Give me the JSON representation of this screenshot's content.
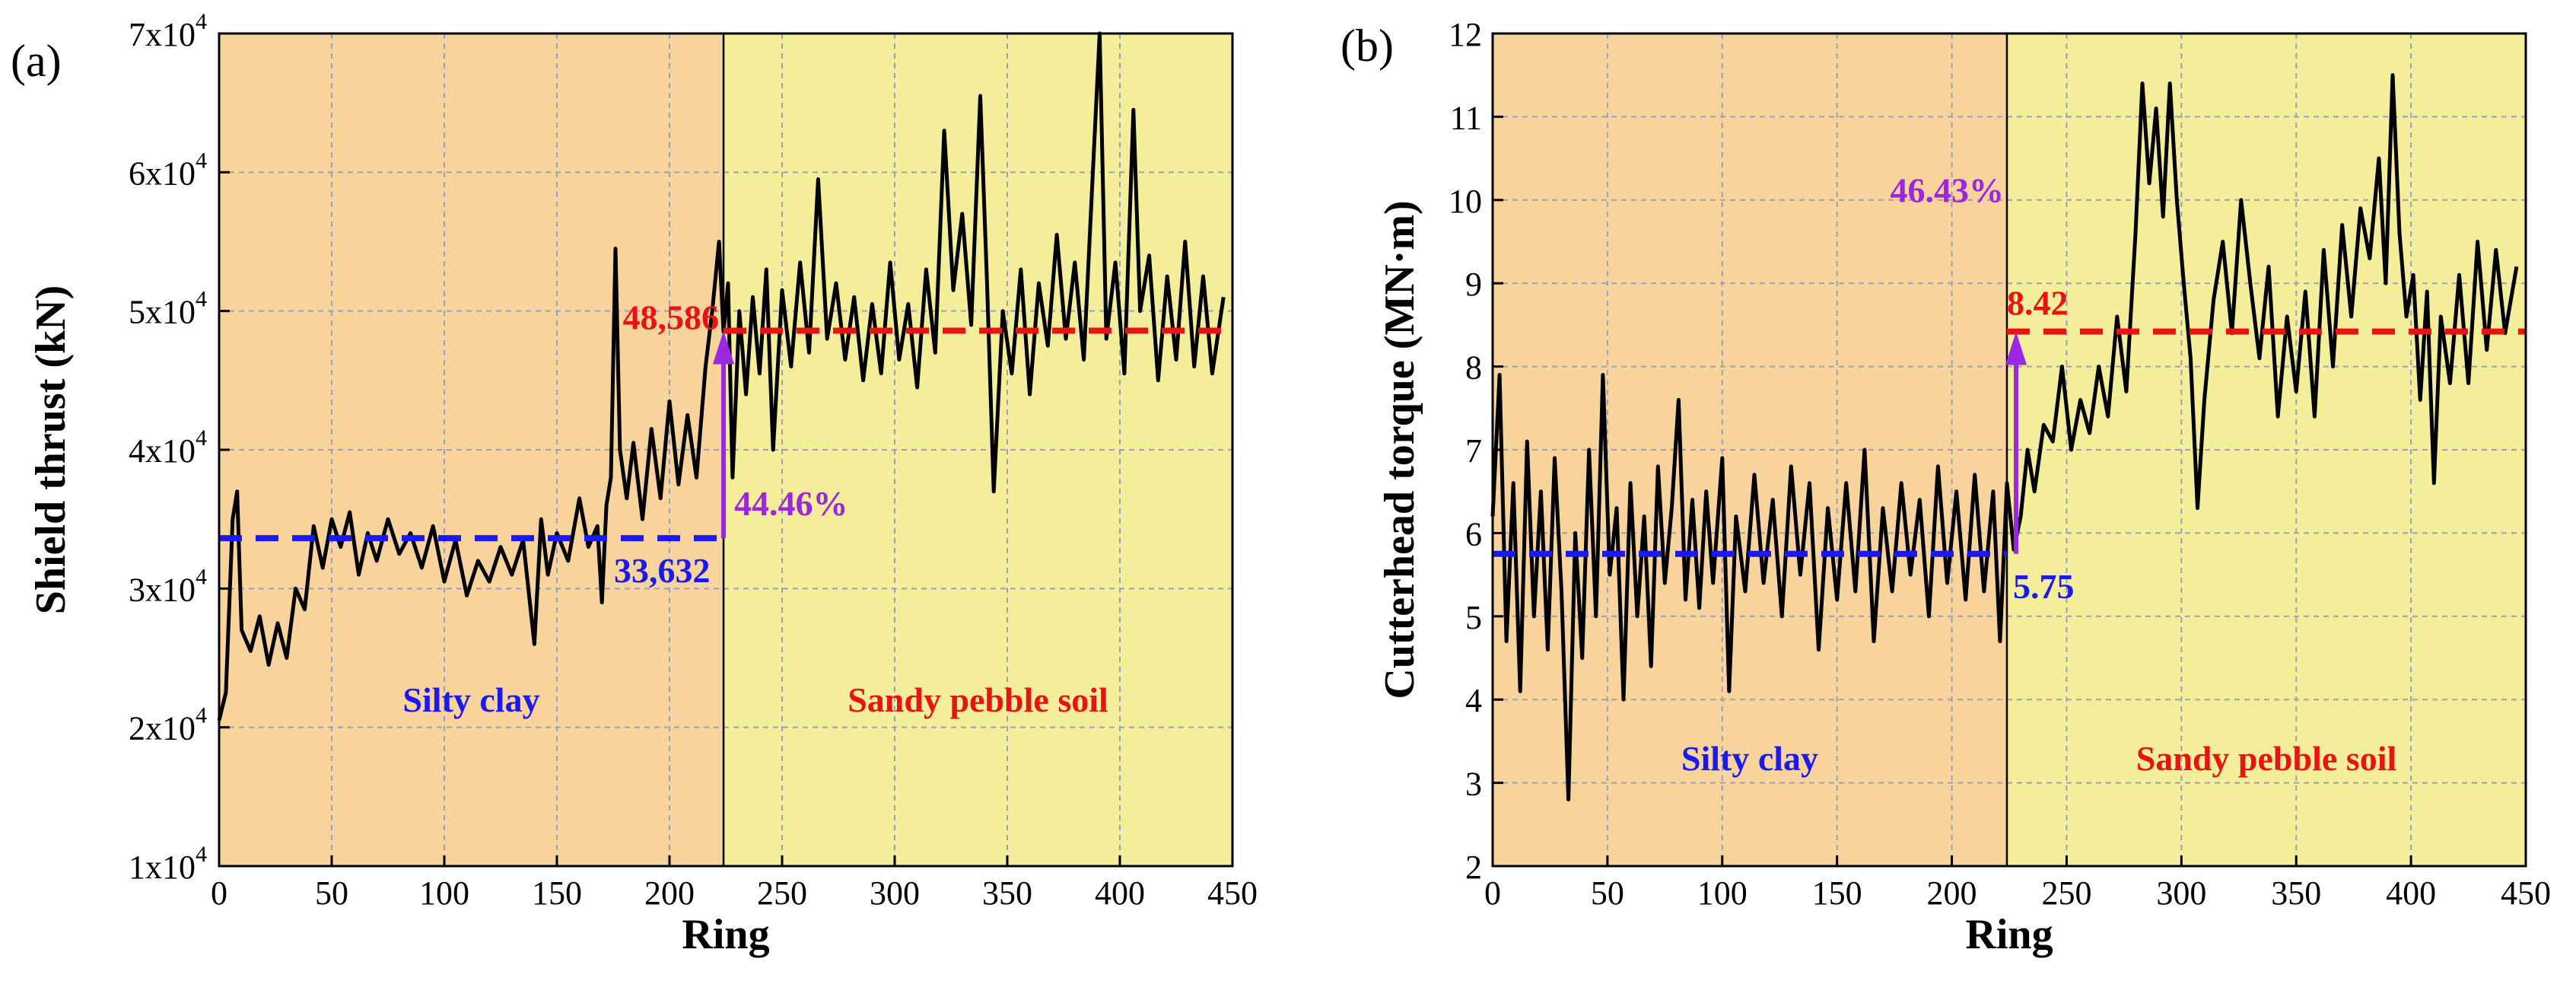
{
  "colors": {
    "silty_bg": "#f8d39b",
    "sandy_bg": "#f4ee9a",
    "series": "#000000",
    "silty_mean": "#1a1af0",
    "sandy_mean": "#e81414",
    "increase": "#9b27e0",
    "grid": "#9aa0b8"
  },
  "chart_data": [
    {
      "type": "line",
      "panel": "(a)",
      "title": "",
      "xlabel": "Ring",
      "ylabel": "Shield thrust (kN)",
      "xlim": [
        0,
        450
      ],
      "ylim": [
        10000,
        70000
      ],
      "x_ticks": [
        0,
        50,
        100,
        150,
        200,
        250,
        300,
        350,
        400,
        450
      ],
      "y_ticks": [
        10000,
        20000,
        30000,
        40000,
        50000,
        60000,
        70000
      ],
      "y_tick_labels": [
        {
          "mant": "1x10",
          "exp": "4"
        },
        {
          "mant": "2x10",
          "exp": "4"
        },
        {
          "mant": "3x10",
          "exp": "4"
        },
        {
          "mant": "4x10",
          "exp": "4"
        },
        {
          "mant": "5x10",
          "exp": "4"
        },
        {
          "mant": "6x10",
          "exp": "4"
        },
        {
          "mant": "7x10",
          "exp": "4"
        }
      ],
      "boundary_ring": 224,
      "regions": [
        {
          "name": "Silty clay",
          "from": 0,
          "to": 224,
          "label_y": 22000
        },
        {
          "name": "Sandy pebble soil",
          "from": 224,
          "to": 450,
          "label_y": 22000
        }
      ],
      "means": {
        "silty": {
          "value": 33632,
          "label": "33,632"
        },
        "sandy": {
          "value": 48586,
          "label": "48,586"
        }
      },
      "increase_label": "44.46%",
      "series": [
        {
          "name": "Shield thrust",
          "points": [
            [
              0,
              20500
            ],
            [
              3,
              22500
            ],
            [
              6,
              35000
            ],
            [
              8,
              37000
            ],
            [
              10,
              27000
            ],
            [
              14,
              25500
            ],
            [
              18,
              28000
            ],
            [
              22,
              24500
            ],
            [
              26,
              27500
            ],
            [
              30,
              25000
            ],
            [
              34,
              30000
            ],
            [
              38,
              28500
            ],
            [
              42,
              34500
            ],
            [
              46,
              31500
            ],
            [
              50,
              35000
            ],
            [
              54,
              33000
            ],
            [
              58,
              35500
            ],
            [
              62,
              31000
            ],
            [
              66,
              34000
            ],
            [
              70,
              32000
            ],
            [
              75,
              35000
            ],
            [
              80,
              32500
            ],
            [
              85,
              34000
            ],
            [
              90,
              31500
            ],
            [
              95,
              34500
            ],
            [
              100,
              30500
            ],
            [
              105,
              33500
            ],
            [
              110,
              29500
            ],
            [
              115,
              32000
            ],
            [
              120,
              30500
            ],
            [
              125,
              33000
            ],
            [
              130,
              31000
            ],
            [
              135,
              33500
            ],
            [
              140,
              26000
            ],
            [
              143,
              35000
            ],
            [
              146,
              31000
            ],
            [
              150,
              34000
            ],
            [
              155,
              32000
            ],
            [
              160,
              36500
            ],
            [
              164,
              33000
            ],
            [
              168,
              34500
            ],
            [
              170,
              29000
            ],
            [
              172,
              36000
            ],
            [
              174,
              38000
            ],
            [
              176,
              54500
            ],
            [
              178,
              40000
            ],
            [
              181,
              36500
            ],
            [
              184,
              40500
            ],
            [
              188,
              35000
            ],
            [
              192,
              41500
            ],
            [
              196,
              36500
            ],
            [
              200,
              43500
            ],
            [
              204,
              37500
            ],
            [
              208,
              42500
            ],
            [
              212,
              38000
            ],
            [
              216,
              46000
            ],
            [
              219,
              50000
            ],
            [
              222,
              55000
            ],
            [
              224,
              48500
            ],
            [
              226,
              52000
            ],
            [
              228,
              38000
            ],
            [
              231,
              50000
            ],
            [
              234,
              44000
            ],
            [
              237,
              51000
            ],
            [
              240,
              45500
            ],
            [
              243,
              53000
            ],
            [
              246,
              40000
            ],
            [
              250,
              51500
            ],
            [
              254,
              46000
            ],
            [
              258,
              53500
            ],
            [
              262,
              47000
            ],
            [
              266,
              59500
            ],
            [
              270,
              48000
            ],
            [
              274,
              52000
            ],
            [
              278,
              46500
            ],
            [
              282,
              51000
            ],
            [
              286,
              45000
            ],
            [
              290,
              50500
            ],
            [
              294,
              45500
            ],
            [
              298,
              53500
            ],
            [
              302,
              46500
            ],
            [
              306,
              50500
            ],
            [
              310,
              44500
            ],
            [
              314,
              53000
            ],
            [
              318,
              47000
            ],
            [
              322,
              63000
            ],
            [
              326,
              51500
            ],
            [
              330,
              57000
            ],
            [
              334,
              49000
            ],
            [
              338,
              65500
            ],
            [
              341,
              52000
            ],
            [
              344,
              37000
            ],
            [
              348,
              50000
            ],
            [
              352,
              45500
            ],
            [
              356,
              53000
            ],
            [
              360,
              44000
            ],
            [
              364,
              52000
            ],
            [
              368,
              47500
            ],
            [
              372,
              55500
            ],
            [
              376,
              48000
            ],
            [
              380,
              53500
            ],
            [
              384,
              46500
            ],
            [
              388,
              60000
            ],
            [
              391,
              70000
            ],
            [
              394,
              48000
            ],
            [
              398,
              53500
            ],
            [
              402,
              45500
            ],
            [
              406,
              64500
            ],
            [
              409,
              50000
            ],
            [
              413,
              54000
            ],
            [
              417,
              45000
            ],
            [
              421,
              52500
            ],
            [
              425,
              46500
            ],
            [
              429,
              55000
            ],
            [
              433,
              46000
            ],
            [
              437,
              52500
            ],
            [
              441,
              45500
            ],
            [
              446,
              51000
            ]
          ]
        }
      ]
    },
    {
      "type": "line",
      "panel": "(b)",
      "title": "",
      "xlabel": "Ring",
      "ylabel": "Cutterhead torque (MN·m)",
      "xlim": [
        0,
        450
      ],
      "ylim": [
        2,
        12
      ],
      "x_ticks": [
        0,
        50,
        100,
        150,
        200,
        250,
        300,
        350,
        400,
        450
      ],
      "y_ticks": [
        2,
        3,
        4,
        5,
        6,
        7,
        8,
        9,
        10,
        11,
        12
      ],
      "boundary_ring": 224,
      "regions": [
        {
          "name": "Silty clay",
          "from": 0,
          "to": 224,
          "label_y": 3.3
        },
        {
          "name": "Sandy pebble soil",
          "from": 224,
          "to": 450,
          "label_y": 3.3
        }
      ],
      "means": {
        "silty": {
          "value": 5.75,
          "label": "5.75"
        },
        "sandy": {
          "value": 8.42,
          "label": "8.42"
        }
      },
      "increase_label": "46.43%",
      "series": [
        {
          "name": "Cutterhead torque",
          "points": [
            [
              0,
              6.2
            ],
            [
              3,
              7.9
            ],
            [
              6,
              4.7
            ],
            [
              9,
              6.6
            ],
            [
              12,
              4.1
            ],
            [
              15,
              7.1
            ],
            [
              18,
              5.0
            ],
            [
              21,
              6.5
            ],
            [
              24,
              4.6
            ],
            [
              27,
              6.9
            ],
            [
              30,
              5.3
            ],
            [
              33,
              2.8
            ],
            [
              36,
              6.0
            ],
            [
              39,
              4.5
            ],
            [
              42,
              7.0
            ],
            [
              45,
              5.0
            ],
            [
              48,
              7.9
            ],
            [
              51,
              5.5
            ],
            [
              54,
              6.3
            ],
            [
              57,
              4.0
            ],
            [
              60,
              6.6
            ],
            [
              63,
              5.0
            ],
            [
              66,
              6.2
            ],
            [
              69,
              4.4
            ],
            [
              72,
              6.8
            ],
            [
              75,
              5.4
            ],
            [
              78,
              6.3
            ],
            [
              81,
              7.6
            ],
            [
              84,
              5.2
            ],
            [
              87,
              6.4
            ],
            [
              90,
              5.1
            ],
            [
              93,
              6.5
            ],
            [
              96,
              5.4
            ],
            [
              100,
              6.9
            ],
            [
              103,
              4.1
            ],
            [
              106,
              6.2
            ],
            [
              110,
              5.3
            ],
            [
              114,
              6.7
            ],
            [
              118,
              5.4
            ],
            [
              122,
              6.4
            ],
            [
              126,
              5.0
            ],
            [
              130,
              6.8
            ],
            [
              134,
              5.5
            ],
            [
              138,
              6.6
            ],
            [
              142,
              4.6
            ],
            [
              146,
              6.3
            ],
            [
              150,
              5.2
            ],
            [
              154,
              6.6
            ],
            [
              158,
              5.3
            ],
            [
              162,
              7.0
            ],
            [
              166,
              4.7
            ],
            [
              170,
              6.3
            ],
            [
              174,
              5.3
            ],
            [
              178,
              6.6
            ],
            [
              182,
              5.5
            ],
            [
              186,
              6.4
            ],
            [
              190,
              5.0
            ],
            [
              194,
              6.8
            ],
            [
              198,
              5.4
            ],
            [
              202,
              6.5
            ],
            [
              206,
              5.2
            ],
            [
              210,
              6.7
            ],
            [
              214,
              5.3
            ],
            [
              218,
              6.5
            ],
            [
              221,
              4.7
            ],
            [
              224,
              6.6
            ],
            [
              227,
              5.8
            ],
            [
              230,
              6.2
            ],
            [
              233,
              7.0
            ],
            [
              236,
              6.5
            ],
            [
              240,
              7.3
            ],
            [
              244,
              7.1
            ],
            [
              248,
              8.0
            ],
            [
              252,
              7.0
            ],
            [
              256,
              7.6
            ],
            [
              260,
              7.2
            ],
            [
              264,
              8.0
            ],
            [
              268,
              7.4
            ],
            [
              272,
              8.6
            ],
            [
              276,
              7.7
            ],
            [
              280,
              9.6
            ],
            [
              283,
              11.4
            ],
            [
              286,
              10.2
            ],
            [
              289,
              11.1
            ],
            [
              292,
              9.8
            ],
            [
              295,
              11.4
            ],
            [
              298,
              10.0
            ],
            [
              301,
              9.0
            ],
            [
              304,
              8.1
            ],
            [
              307,
              6.3
            ],
            [
              310,
              7.6
            ],
            [
              314,
              8.8
            ],
            [
              318,
              9.5
            ],
            [
              322,
              8.4
            ],
            [
              326,
              10.0
            ],
            [
              330,
              9.0
            ],
            [
              334,
              8.1
            ],
            [
              338,
              9.2
            ],
            [
              342,
              7.4
            ],
            [
              346,
              8.6
            ],
            [
              350,
              7.7
            ],
            [
              354,
              8.9
            ],
            [
              358,
              7.4
            ],
            [
              362,
              9.4
            ],
            [
              366,
              8.0
            ],
            [
              370,
              9.7
            ],
            [
              374,
              8.6
            ],
            [
              378,
              9.9
            ],
            [
              382,
              9.3
            ],
            [
              386,
              10.5
            ],
            [
              389,
              9.0
            ],
            [
              392,
              11.5
            ],
            [
              395,
              9.6
            ],
            [
              398,
              8.6
            ],
            [
              401,
              9.1
            ],
            [
              404,
              7.6
            ],
            [
              407,
              8.9
            ],
            [
              410,
              6.6
            ],
            [
              413,
              8.6
            ],
            [
              417,
              7.8
            ],
            [
              421,
              9.1
            ],
            [
              425,
              7.8
            ],
            [
              429,
              9.5
            ],
            [
              433,
              8.2
            ],
            [
              437,
              9.4
            ],
            [
              441,
              8.4
            ],
            [
              446,
              9.2
            ]
          ]
        }
      ]
    }
  ]
}
